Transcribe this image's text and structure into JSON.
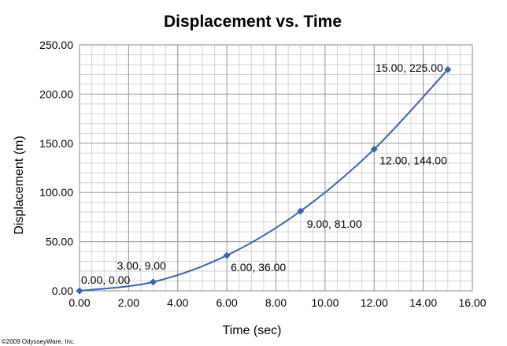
{
  "chart_data": {
    "type": "scatter",
    "title": "Displacement vs. Time",
    "xlabel": "Time (sec)",
    "ylabel": "Displacement (m)",
    "xlim": [
      0,
      16
    ],
    "ylim": [
      0,
      250
    ],
    "x_ticks": [
      "0.00",
      "2.00",
      "4.00",
      "6.00",
      "8.00",
      "10.00",
      "12.00",
      "14.00",
      "16.00"
    ],
    "y_ticks": [
      "0.00",
      "50.00",
      "100.00",
      "150.00",
      "200.00",
      "250.00"
    ],
    "grid": true,
    "legend": "none",
    "line_style": "smooth",
    "series_color": "#3a64a8",
    "series": [
      {
        "x": [
          0,
          3,
          6,
          9,
          12,
          15
        ],
        "y": [
          0,
          9,
          36,
          81,
          144,
          225
        ],
        "labels": [
          "0.00, 0.00",
          "3.00, 9.00",
          "6.00, 36.00",
          "9.00, 81.00",
          "12.00, 144.00",
          "15.00, 225.00"
        ]
      }
    ]
  },
  "copyright": "©2009 OdysseyWare, Inc."
}
